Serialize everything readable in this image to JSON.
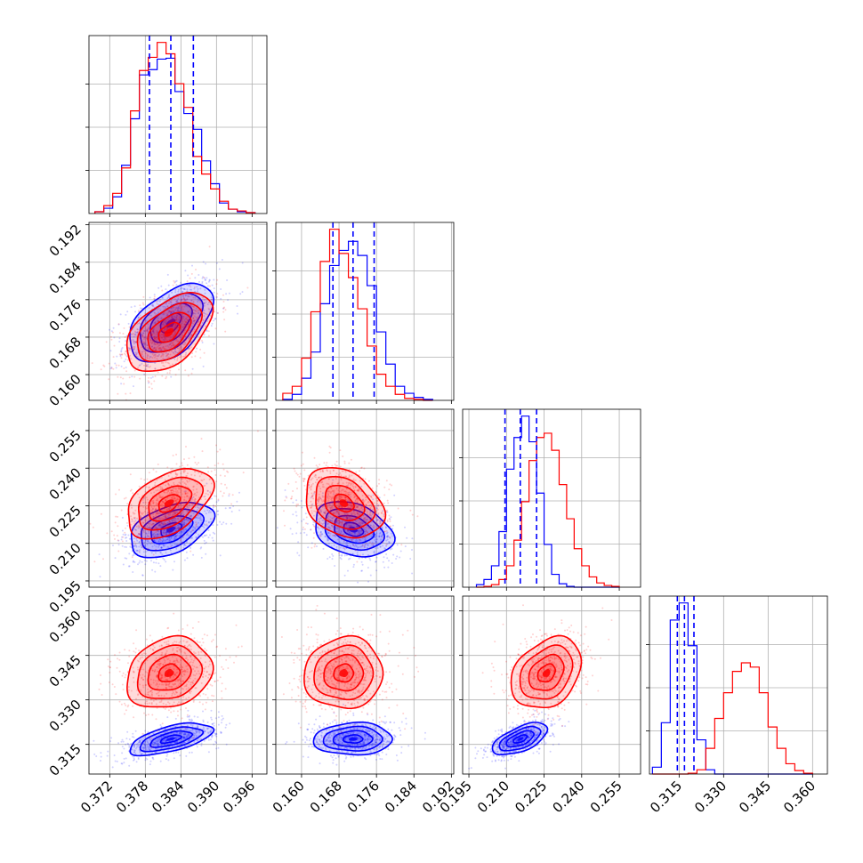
{
  "chart_data": {
    "type": "corner",
    "grid": true,
    "series": [
      {
        "color": "#0000ff"
      },
      {
        "color": "#ff0000"
      }
    ],
    "quantile_line_color": "#0000ff",
    "parameters": [
      {
        "range": [
          0.3685,
          0.3985
        ],
        "ticks": [
          0.372,
          0.378,
          0.384,
          0.39,
          0.396
        ],
        "tick_labels": [
          "0.372",
          "0.378",
          "0.384",
          "0.390",
          "0.396"
        ],
        "quantiles": [
          0.3787,
          0.3823,
          0.3861
        ]
      },
      {
        "range": [
          0.1545,
          0.1925
        ],
        "ticks": [
          0.16,
          0.168,
          0.176,
          0.184,
          0.192
        ],
        "tick_labels": [
          "0.160",
          "0.168",
          "0.176",
          "0.184",
          "0.192"
        ],
        "quantiles": [
          0.1667,
          0.171,
          0.1755
        ]
      },
      {
        "range": [
          0.1925,
          0.2635
        ],
        "ticks": [
          0.195,
          0.21,
          0.225,
          0.24,
          0.255
        ],
        "tick_labels": [
          "0.195",
          "0.210",
          "0.225",
          "0.240",
          "0.255"
        ],
        "quantiles": [
          0.2094,
          0.2155,
          0.222
        ]
      },
      {
        "range": [
          0.305,
          0.365
        ],
        "ticks": [
          0.315,
          0.33,
          0.345,
          0.36
        ],
        "tick_labels": [
          "0.315",
          "0.330",
          "0.345",
          "0.360"
        ],
        "quantiles": [
          0.3144,
          0.3168,
          0.32
        ]
      }
    ],
    "histograms": [
      {
        "param": 0,
        "edges": [
          0.3695,
          0.371,
          0.3725,
          0.374,
          0.3755,
          0.377,
          0.3785,
          0.38,
          0.3815,
          0.383,
          0.3845,
          0.386,
          0.3875,
          0.389,
          0.3905,
          0.392,
          0.3935,
          0.395,
          0.3965
        ],
        "blue": [
          2,
          6,
          19,
          55,
          108,
          158,
          164,
          176,
          177,
          139,
          114,
          96,
          60,
          34,
          12,
          5,
          2,
          1
        ],
        "red": [
          2,
          9,
          23,
          52,
          117,
          163,
          178,
          195,
          182,
          148,
          121,
          65,
          45,
          28,
          14,
          5,
          3,
          1
        ]
      },
      {
        "param": 1,
        "edges": [
          0.156,
          0.158,
          0.16,
          0.162,
          0.164,
          0.166,
          0.168,
          0.17,
          0.172,
          0.174,
          0.176,
          0.178,
          0.18,
          0.182,
          0.184,
          0.186,
          0.188
        ],
        "blue": [
          1,
          6,
          22,
          48,
          96,
          134,
          149,
          158,
          144,
          114,
          68,
          36,
          14,
          7,
          3,
          1
        ],
        "red": [
          7,
          14,
          42,
          88,
          138,
          170,
          146,
          122,
          91,
          54,
          26,
          14,
          6,
          2,
          1,
          0
        ]
      },
      {
        "param": 2,
        "edges": [
          0.198,
          0.201,
          0.204,
          0.207,
          0.21,
          0.213,
          0.216,
          0.219,
          0.222,
          0.225,
          0.228,
          0.231,
          0.234,
          0.237,
          0.24,
          0.243,
          0.246,
          0.249,
          0.252,
          0.255
        ],
        "blue": [
          3,
          9,
          25,
          65,
          138,
          175,
          200,
          170,
          110,
          50,
          15,
          4,
          1,
          0,
          0,
          0,
          0,
          0,
          0
        ],
        "red": [
          0,
          1,
          3,
          9,
          25,
          55,
          100,
          148,
          175,
          180,
          160,
          120,
          80,
          45,
          25,
          12,
          5,
          2,
          1
        ]
      },
      {
        "param": 3,
        "edges": [
          0.306,
          0.309,
          0.312,
          0.315,
          0.318,
          0.321,
          0.324,
          0.327,
          0.33,
          0.333,
          0.336,
          0.339,
          0.342,
          0.345,
          0.348,
          0.351,
          0.354,
          0.357,
          0.36
        ],
        "blue": [
          8,
          60,
          180,
          200,
          150,
          40,
          5,
          0,
          0,
          0,
          0,
          0,
          0,
          0,
          0,
          0,
          0,
          0
        ],
        "red": [
          0,
          0,
          0,
          0,
          1,
          5,
          30,
          65,
          95,
          120,
          130,
          125,
          95,
          55,
          30,
          12,
          4,
          1
        ]
      }
    ],
    "pairs": [
      {
        "x": 1,
        "y": 0,
        "blue": {
          "mean": [
            0.171,
            0.3823
          ],
          "sd": [
            0.0042,
            0.0035
          ],
          "r": 0.5
        },
        "red": {
          "mean": [
            0.169,
            0.382
          ],
          "sd": [
            0.0042,
            0.0036
          ],
          "r": 0.5
        }
      },
      {
        "x": 2,
        "y": 0,
        "blue": {
          "mean": [
            0.2155,
            0.3823
          ],
          "sd": [
            0.0055,
            0.0035
          ],
          "r": 0.45
        },
        "red": {
          "mean": [
            0.226,
            0.382
          ],
          "sd": [
            0.007,
            0.0036
          ],
          "r": 0.45
        }
      },
      {
        "x": 2,
        "y": 1,
        "blue": {
          "mean": [
            0.2155,
            0.171
          ],
          "sd": [
            0.0055,
            0.0042
          ],
          "r": -0.3
        },
        "red": {
          "mean": [
            0.226,
            0.169
          ],
          "sd": [
            0.007,
            0.0042
          ],
          "r": -0.3
        }
      },
      {
        "x": 3,
        "y": 0,
        "blue": {
          "mean": [
            0.3168,
            0.3823
          ],
          "sd": [
            0.0027,
            0.0035
          ],
          "r": 0.6
        },
        "red": {
          "mean": [
            0.339,
            0.382
          ],
          "sd": [
            0.006,
            0.0036
          ],
          "r": 0.2
        }
      },
      {
        "x": 3,
        "y": 1,
        "blue": {
          "mean": [
            0.3168,
            0.171
          ],
          "sd": [
            0.0027,
            0.0042
          ],
          "r": 0.05
        },
        "red": {
          "mean": [
            0.339,
            0.169
          ],
          "sd": [
            0.006,
            0.0042
          ],
          "r": 0.05
        }
      },
      {
        "x": 3,
        "y": 2,
        "blue": {
          "mean": [
            0.3168,
            0.2155
          ],
          "sd": [
            0.0027,
            0.0055
          ],
          "r": 0.6
        },
        "red": {
          "mean": [
            0.339,
            0.226
          ],
          "sd": [
            0.006,
            0.007
          ],
          "r": 0.3
        }
      }
    ],
    "contour_levels": [
      0.5,
      1.0,
      1.5,
      2.0
    ]
  }
}
